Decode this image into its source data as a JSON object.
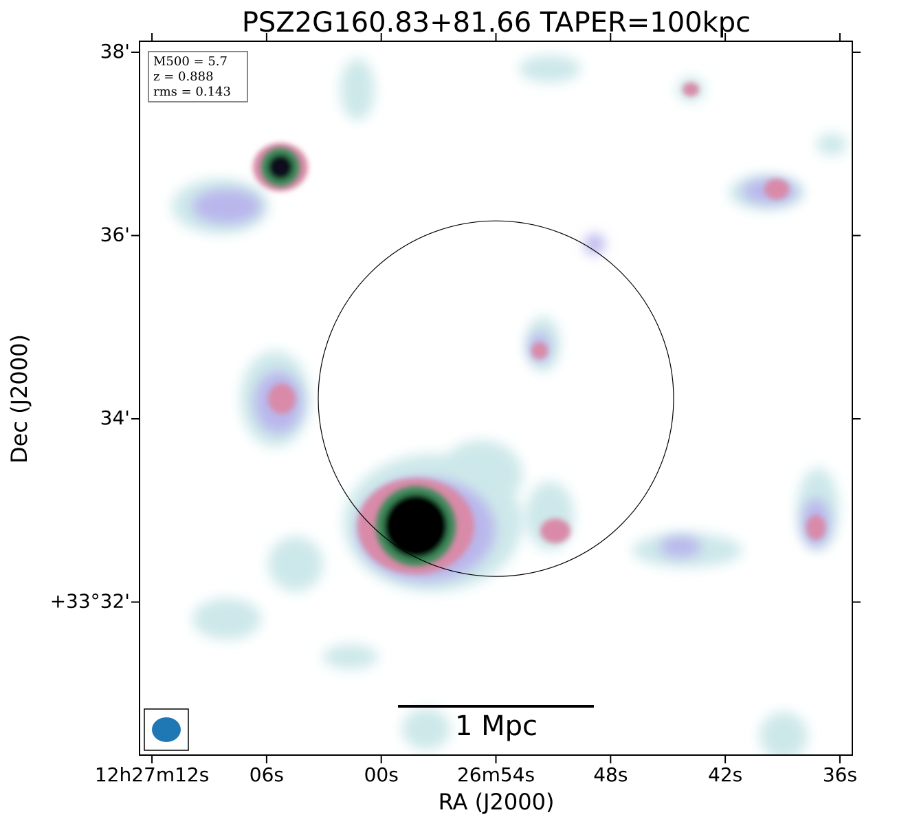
{
  "chart_data": {
    "type": "image",
    "title": "PSZ2G160.83+81.66 TAPER=100kpc",
    "xlabel": "RA (J2000)",
    "ylabel": "Dec (J2000)",
    "xlim": [
      72.65,
      35.35
    ],
    "xticks": [
      {
        "value": 72,
        "label": "12h27m12s"
      },
      {
        "value": 66,
        "label": "06s"
      },
      {
        "value": 60,
        "label": "00s"
      },
      {
        "value": 54,
        "label": "26m54s"
      },
      {
        "value": 48,
        "label": "48s"
      },
      {
        "value": 42,
        "label": "42s"
      },
      {
        "value": 36,
        "label": "36s"
      }
    ],
    "ylim": [
      30.33,
      38.12
    ],
    "yticks": [
      {
        "value": 38,
        "label": "38'"
      },
      {
        "value": 36,
        "label": "36'"
      },
      {
        "value": 34,
        "label": "34'"
      },
      {
        "value": 32,
        "label": "+33°32'"
      }
    ],
    "annotations": [
      "M500 = 5.7",
      "z = 0.888",
      "rms = 0.143"
    ],
    "scalebar_label": "1 Mpc",
    "circle": {
      "x": 54,
      "y": 34.22,
      "radius": 1.94
    }
  }
}
